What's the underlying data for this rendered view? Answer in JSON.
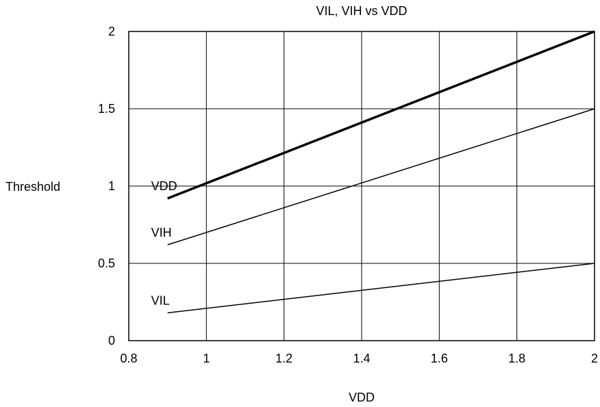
{
  "chart_data": {
    "type": "line",
    "title": "VIL, VIH vs VDD",
    "xlabel": "VDD",
    "ylabel": "Threshold",
    "xlim": [
      0.8,
      2
    ],
    "ylim": [
      0,
      2
    ],
    "xticks": [
      "0.8",
      "1",
      "1.2",
      "1.4",
      "1.6",
      "1.8",
      "2"
    ],
    "yticks": [
      "0",
      "0.5",
      "1",
      "1.5",
      "2"
    ],
    "grid": true,
    "legend": "inline labels",
    "x": [
      0.9,
      2.0
    ],
    "series": [
      {
        "name": "VDD",
        "values": [
          0.92,
          2.0
        ],
        "color": "#000000",
        "bold": true
      },
      {
        "name": "VIH",
        "values": [
          0.62,
          1.5
        ],
        "color": "#000000",
        "bold": false
      },
      {
        "name": "VIL",
        "values": [
          0.18,
          0.5
        ],
        "color": "#000000",
        "bold": false
      }
    ]
  }
}
